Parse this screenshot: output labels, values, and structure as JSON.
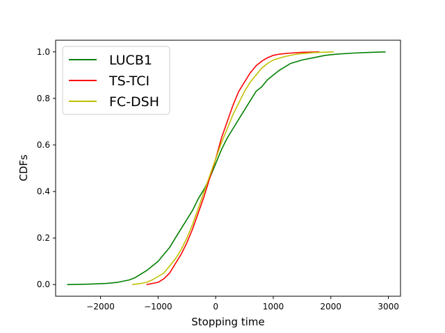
{
  "chart_data": {
    "type": "line",
    "title": "",
    "xlabel": "Stopping time",
    "ylabel": "CDFs",
    "xlim": [
      -2780,
      3210
    ],
    "ylim": [
      -0.05,
      1.05
    ],
    "xticks": [
      -2000,
      -1000,
      0,
      1000,
      2000,
      3000
    ],
    "xtick_labels": [
      "−2000",
      "−1000",
      "0",
      "1000",
      "2000",
      "3000"
    ],
    "yticks": [
      0.0,
      0.2,
      0.4,
      0.6,
      0.8,
      1.0
    ],
    "ytick_labels": [
      "0.0",
      "0.2",
      "0.4",
      "0.6",
      "0.8",
      "1.0"
    ],
    "grid": false,
    "legend_position": "top-left",
    "series": [
      {
        "name": "LUCB1",
        "color": "#008000",
        "points": [
          [
            -2580,
            0.0
          ],
          [
            -2200,
            0.002
          ],
          [
            -1900,
            0.005
          ],
          [
            -1700,
            0.01
          ],
          [
            -1500,
            0.02
          ],
          [
            -1400,
            0.03
          ],
          [
            -1300,
            0.045
          ],
          [
            -1200,
            0.06
          ],
          [
            -1100,
            0.08
          ],
          [
            -1000,
            0.1
          ],
          [
            -900,
            0.13
          ],
          [
            -800,
            0.16
          ],
          [
            -700,
            0.2
          ],
          [
            -600,
            0.24
          ],
          [
            -500,
            0.28
          ],
          [
            -400,
            0.32
          ],
          [
            -300,
            0.37
          ],
          [
            -200,
            0.41
          ],
          [
            -100,
            0.46
          ],
          [
            0,
            0.52
          ],
          [
            100,
            0.58
          ],
          [
            200,
            0.63
          ],
          [
            300,
            0.67
          ],
          [
            400,
            0.71
          ],
          [
            500,
            0.75
          ],
          [
            600,
            0.79
          ],
          [
            700,
            0.83
          ],
          [
            800,
            0.85
          ],
          [
            900,
            0.88
          ],
          [
            1000,
            0.9
          ],
          [
            1100,
            0.92
          ],
          [
            1200,
            0.935
          ],
          [
            1300,
            0.95
          ],
          [
            1500,
            0.965
          ],
          [
            1700,
            0.975
          ],
          [
            1900,
            0.985
          ],
          [
            2100,
            0.99
          ],
          [
            2400,
            0.995
          ],
          [
            2700,
            0.998
          ],
          [
            2950,
            1.0
          ]
        ]
      },
      {
        "name": "TS-TCI",
        "color": "#ff0000",
        "points": [
          [
            -1200,
            0.0
          ],
          [
            -1100,
            0.005
          ],
          [
            -1000,
            0.01
          ],
          [
            -900,
            0.025
          ],
          [
            -800,
            0.05
          ],
          [
            -700,
            0.09
          ],
          [
            -600,
            0.13
          ],
          [
            -500,
            0.18
          ],
          [
            -400,
            0.24
          ],
          [
            -300,
            0.31
          ],
          [
            -200,
            0.38
          ],
          [
            -100,
            0.46
          ],
          [
            0,
            0.54
          ],
          [
            100,
            0.63
          ],
          [
            200,
            0.7
          ],
          [
            300,
            0.77
          ],
          [
            400,
            0.83
          ],
          [
            500,
            0.87
          ],
          [
            600,
            0.91
          ],
          [
            700,
            0.94
          ],
          [
            800,
            0.96
          ],
          [
            900,
            0.975
          ],
          [
            1000,
            0.985
          ],
          [
            1100,
            0.99
          ],
          [
            1300,
            0.995
          ],
          [
            1500,
            0.998
          ],
          [
            1800,
            1.0
          ]
        ]
      },
      {
        "name": "FC-DSH",
        "color": "#bfbf00",
        "points": [
          [
            -1450,
            0.0
          ],
          [
            -1300,
            0.005
          ],
          [
            -1200,
            0.01
          ],
          [
            -1100,
            0.02
          ],
          [
            -1000,
            0.035
          ],
          [
            -900,
            0.05
          ],
          [
            -800,
            0.08
          ],
          [
            -700,
            0.11
          ],
          [
            -600,
            0.15
          ],
          [
            -500,
            0.2
          ],
          [
            -400,
            0.26
          ],
          [
            -300,
            0.33
          ],
          [
            -200,
            0.4
          ],
          [
            -100,
            0.47
          ],
          [
            0,
            0.54
          ],
          [
            100,
            0.61
          ],
          [
            200,
            0.67
          ],
          [
            300,
            0.73
          ],
          [
            400,
            0.78
          ],
          [
            500,
            0.83
          ],
          [
            600,
            0.87
          ],
          [
            700,
            0.9
          ],
          [
            800,
            0.93
          ],
          [
            900,
            0.95
          ],
          [
            1000,
            0.965
          ],
          [
            1200,
            0.98
          ],
          [
            1400,
            0.99
          ],
          [
            1700,
            0.997
          ],
          [
            2050,
            1.0
          ]
        ]
      }
    ]
  }
}
